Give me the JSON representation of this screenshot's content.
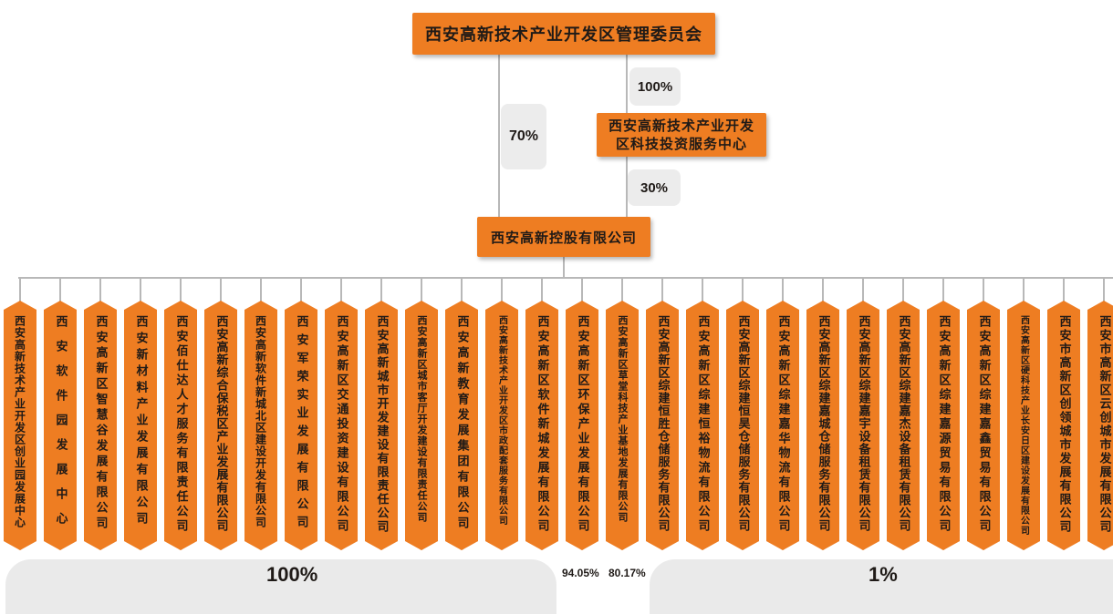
{
  "top_entity": "西安高新技术产业开发区管理委员会",
  "investment_center": "西安高新技术产业开发区科技投资服务中心",
  "holding_company": "西安高新控股有限公司",
  "ownership": {
    "committee_to_center": "100%",
    "committee_to_holding": "70%",
    "center_to_holding": "30%"
  },
  "subsidiaries": [
    {
      "name": "西安高新技术产业开发区创业园发展中心"
    },
    {
      "name": "西安软件园发展中心"
    },
    {
      "name": "西安高新区智慧谷发展有限公司"
    },
    {
      "name": "西安新材料产业发展有限公司"
    },
    {
      "name": "西安佰仕达人才服务有限责任公司"
    },
    {
      "name": "西安高新综合保税区产业发展有限公司"
    },
    {
      "name": "西安高新软件新城北区建设开发有限公司"
    },
    {
      "name": "西安军荣实业发展有限公司"
    },
    {
      "name": "西安高新区交通投资建设有限公司"
    },
    {
      "name": "西安高新城市开发建设有限责任公司"
    },
    {
      "name": "西安高新区城市客厅开发建设有限责任公司"
    },
    {
      "name": "西安高新教育发展集团有限公司"
    },
    {
      "name": "西安高新技术产业开发区市政配套服务有限公司"
    },
    {
      "name": "西安高新区软件新城发展有限公司"
    },
    {
      "name": "西安高新区环保产业发展有限公司"
    },
    {
      "name": "西安高新区草堂科技产业基地发展有限公司"
    },
    {
      "name": "西安高新区综建恒胜仓储服务有限公司"
    },
    {
      "name": "西安高新区综建恒裕物流有限公司"
    },
    {
      "name": "西安高新区综建恒昊仓储服务有限公司"
    },
    {
      "name": "西安高新区综建嘉华物流有限公司"
    },
    {
      "name": "西安高新区综建嘉城仓储服务有限公司"
    },
    {
      "name": "西安高新区综建嘉宇设备租赁有限公司"
    },
    {
      "name": "西安高新区综建嘉杰设备租赁有限公司"
    },
    {
      "name": "西安高新区综建嘉源贸易有限公司"
    },
    {
      "name": "西安高新区综建嘉鑫贸易有限公司"
    },
    {
      "name": "西安高新区硬科技产业长安日区建设发展有限公司"
    },
    {
      "name": "西安市高新区创领城市发展有限公司"
    },
    {
      "name": "西安市高新区云创城市发展有限公司"
    }
  ],
  "groups": {
    "left_pct": "100%",
    "mid_pct_1": "94.05%",
    "mid_pct_2": "80.17%",
    "right_pct": "1%"
  },
  "colors": {
    "box_fill": "#ee7d22",
    "connector": "#b8b8b8",
    "label_bg": "#ececec"
  }
}
